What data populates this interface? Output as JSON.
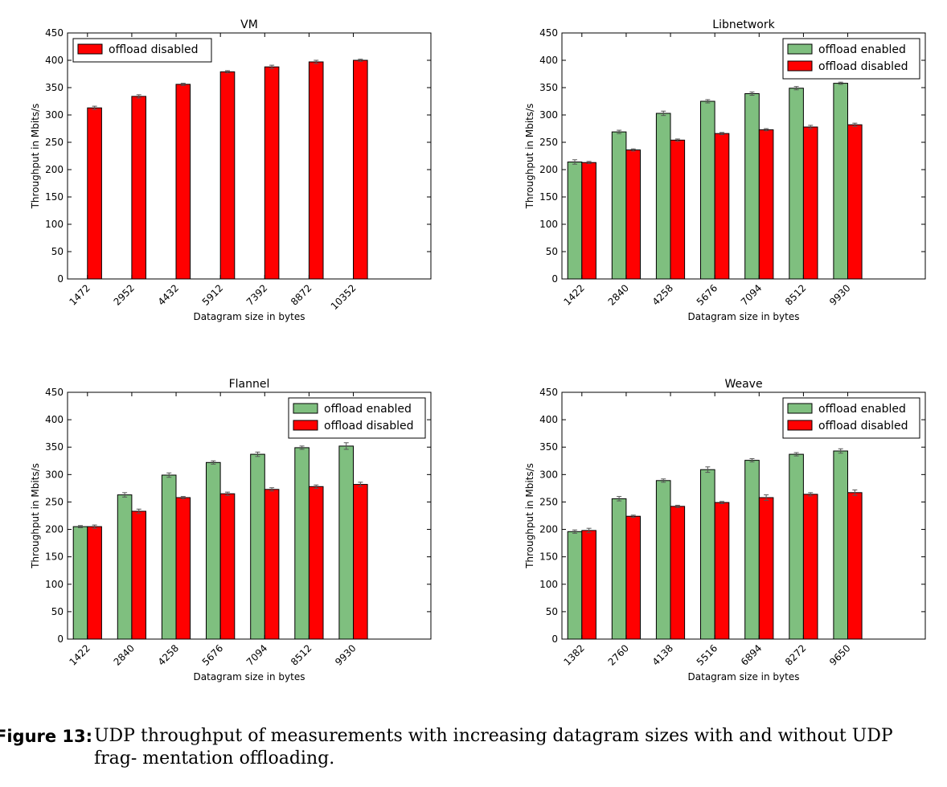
{
  "figure": {
    "label": "Figure 13:",
    "text": "UDP throughput of measurements with increasing datagram sizes with and without UDP frag- mentation offloading."
  },
  "colors": {
    "offload_enabled": "#7fbf7f",
    "offload_disabled": "#ff0000",
    "error_bar": "#555555"
  },
  "chart_data": [
    {
      "type": "bar",
      "title": "VM",
      "xlabel": "Datagram size in bytes",
      "ylabel": "Throughput in Mbits/s",
      "ylim": [
        0,
        450
      ],
      "yticks": [
        0,
        50,
        100,
        150,
        200,
        250,
        300,
        350,
        400,
        450
      ],
      "categories": [
        "1472",
        "2952",
        "4432",
        "5912",
        "7392",
        "8872",
        "10352"
      ],
      "legend": "top-left",
      "grid": false,
      "series": [
        {
          "name": "offload disabled",
          "color": "#ff0000",
          "values": [
            313,
            334,
            356,
            379,
            388,
            397,
            400
          ],
          "errors": [
            3,
            3,
            2,
            2,
            3,
            3,
            2
          ]
        }
      ]
    },
    {
      "type": "bar",
      "title": "Libnetwork",
      "xlabel": "Datagram size in bytes",
      "ylabel": "Throughput in Mbits/s",
      "ylim": [
        0,
        450
      ],
      "yticks": [
        0,
        50,
        100,
        150,
        200,
        250,
        300,
        350,
        400,
        450
      ],
      "categories": [
        "1422",
        "2840",
        "4258",
        "5676",
        "7094",
        "8512",
        "9930"
      ],
      "legend": "top-right",
      "grid": false,
      "series": [
        {
          "name": "offload enabled",
          "color": "#7fbf7f",
          "values": [
            214,
            269,
            303,
            325,
            339,
            349,
            358
          ],
          "errors": [
            4,
            3,
            4,
            3,
            3,
            3,
            2
          ]
        },
        {
          "name": "offload disabled",
          "color": "#ff0000",
          "values": [
            213,
            236,
            254,
            266,
            273,
            278,
            282
          ],
          "errors": [
            2,
            2,
            2,
            2,
            2,
            3,
            3
          ]
        }
      ]
    },
    {
      "type": "bar",
      "title": "Flannel",
      "xlabel": "Datagram size in bytes",
      "ylabel": "Throughput in Mbits/s",
      "ylim": [
        0,
        450
      ],
      "yticks": [
        0,
        50,
        100,
        150,
        200,
        250,
        300,
        350,
        400,
        450
      ],
      "categories": [
        "1422",
        "2840",
        "4258",
        "5676",
        "7094",
        "8512",
        "9930"
      ],
      "legend": "top-right",
      "grid": false,
      "series": [
        {
          "name": "offload enabled",
          "color": "#7fbf7f",
          "values": [
            205,
            263,
            299,
            322,
            337,
            349,
            352
          ],
          "errors": [
            2,
            4,
            4,
            3,
            4,
            3,
            6
          ]
        },
        {
          "name": "offload disabled",
          "color": "#ff0000",
          "values": [
            205,
            233,
            258,
            265,
            273,
            278,
            282
          ],
          "errors": [
            3,
            4,
            2,
            3,
            3,
            3,
            4
          ]
        }
      ]
    },
    {
      "type": "bar",
      "title": "Weave",
      "xlabel": "Datagram size in bytes",
      "ylabel": "Throughput in Mbits/s",
      "ylim": [
        0,
        450
      ],
      "yticks": [
        0,
        50,
        100,
        150,
        200,
        250,
        300,
        350,
        400,
        450
      ],
      "categories": [
        "1382",
        "2760",
        "4138",
        "5516",
        "6894",
        "8272",
        "9650"
      ],
      "legend": "top-right",
      "grid": false,
      "series": [
        {
          "name": "offload enabled",
          "color": "#7fbf7f",
          "values": [
            196,
            256,
            289,
            309,
            326,
            337,
            343
          ],
          "errors": [
            3,
            4,
            3,
            5,
            3,
            3,
            4
          ]
        },
        {
          "name": "offload disabled",
          "color": "#ff0000",
          "values": [
            198,
            224,
            242,
            249,
            258,
            264,
            267
          ],
          "errors": [
            4,
            2,
            2,
            2,
            5,
            3,
            5
          ]
        }
      ]
    }
  ]
}
